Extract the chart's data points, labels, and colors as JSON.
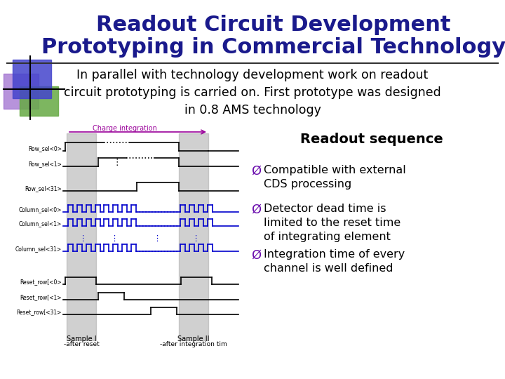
{
  "title_line1": "Readout Circuit Development",
  "title_line2": "Prototyping in Commercial Technology",
  "subtitle": "In parallel with technology development work on readout\ncircuit prototyping is carried on. First prototype was designed\nin 0.8 AMS technology",
  "readout_title": "Readout sequence",
  "bullets": [
    "Compatible with external\nCDS processing",
    "Detector dead time is\nlimited to the reset time\nof integrating element",
    "Integration time of every\nchannel is well defined"
  ],
  "bg_color": "#ffffff",
  "title_color": "#1a1a8c",
  "text_color": "#000000",
  "bullet_color": "#6a0dad",
  "logo_blue": "#4444cc",
  "logo_purple": "#9966cc",
  "logo_green": "#66aa44",
  "waveform_black": "#000000",
  "waveform_blue": "#0000cc",
  "waveform_purple": "#990099",
  "shading_gray": "#aaaaaa"
}
